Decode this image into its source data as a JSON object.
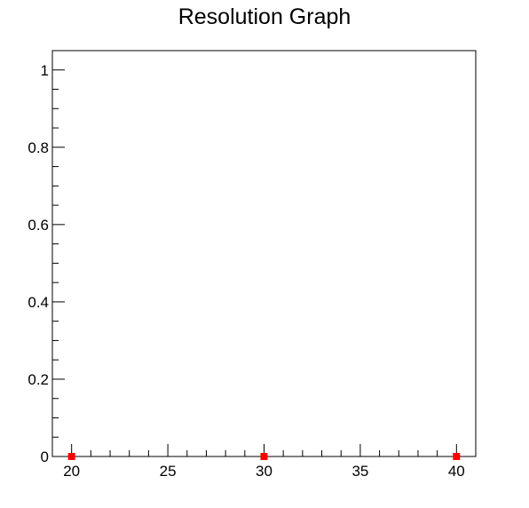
{
  "chart_data": {
    "type": "scatter",
    "title": "Resolution Graph",
    "xlabel": "",
    "ylabel": "",
    "xlim": [
      19,
      41
    ],
    "ylim": [
      0,
      1.05
    ],
    "x_ticks": [
      20,
      25,
      30,
      35,
      40
    ],
    "x_tick_labels": [
      "20",
      "25",
      "30",
      "35",
      "40"
    ],
    "y_ticks": [
      0,
      0.2,
      0.4,
      0.6,
      0.8,
      1
    ],
    "y_tick_labels": [
      "0",
      "0.2",
      "0.4",
      "0.6",
      "0.8",
      "1"
    ],
    "grid": false,
    "legend": "none",
    "series": [
      {
        "x": [
          20,
          30,
          40
        ],
        "y": [
          0,
          0,
          0
        ],
        "color": "#ff0000",
        "marker": "square"
      }
    ]
  }
}
